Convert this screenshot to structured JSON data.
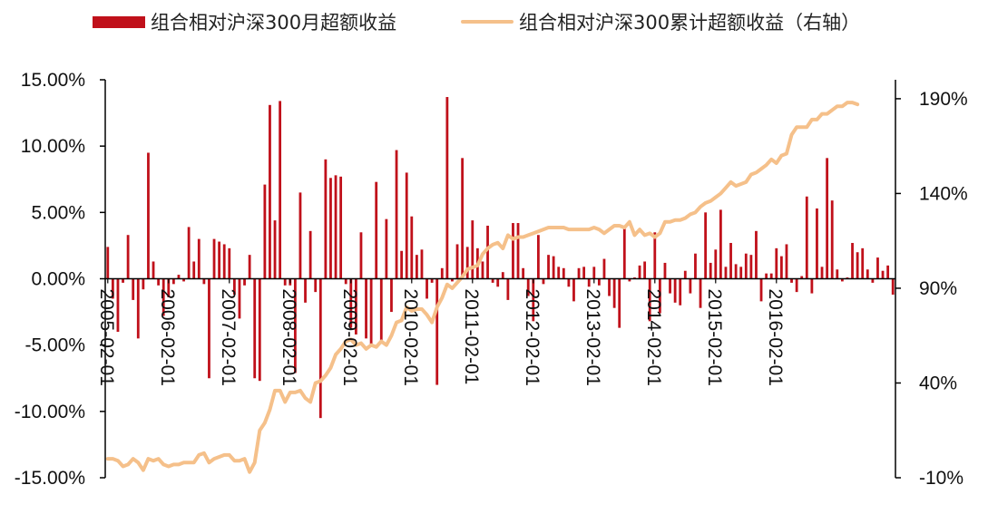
{
  "legend": {
    "bar_label": "组合相对沪深300月超额收益",
    "line_label": "组合相对沪深300累计超额收益（右轴）"
  },
  "colors": {
    "bar": "#c0101a",
    "line": "#f5c08a",
    "axis": "#000000"
  },
  "chart_data": {
    "type": "bar",
    "title": "",
    "xlabel": "",
    "ylabel": "",
    "x_tick_labels": [
      "2005-02-01",
      "2006-02-01",
      "2007-02-01",
      "2008-02-01",
      "2009-02-01",
      "2010-02-01",
      "2011-02-01",
      "2012-02-01",
      "2013-02-01",
      "2014-02-01",
      "2015-02-01",
      "2016-02-01"
    ],
    "y_left_ticks": [
      "15.00%",
      "10.00%",
      "5.00%",
      "0.00%",
      "-5.00%",
      "-10.00%",
      "-15.00%"
    ],
    "y_right_ticks": [
      "190%",
      "140%",
      "90%",
      "40%",
      "-10%"
    ],
    "ylim_left": [
      -15,
      15
    ],
    "ylim_right": [
      -10,
      200
    ],
    "start_month": "2005-02",
    "series": [
      {
        "name": "组合相对沪深300月超额收益",
        "type": "bar",
        "axis": "left",
        "values": [
          2.4,
          -1.5,
          -4.0,
          -0.3,
          3.3,
          -1.6,
          -4.5,
          -0.8,
          9.5,
          1.3,
          -0.5,
          -2.8,
          -1.4,
          -0.4,
          0.3,
          -0.2,
          3.9,
          1.3,
          3.0,
          -0.4,
          -7.5,
          3.0,
          2.8,
          2.6,
          2.3,
          -1.2,
          -3.0,
          -0.5,
          1.8,
          -7.5,
          -7.7,
          7.1,
          13.1,
          4.4,
          13.4,
          -0.5,
          -0.5,
          -7.1,
          6.5,
          -1.8,
          3.6,
          -1.0,
          -10.5,
          9.0,
          7.6,
          7.8,
          7.7,
          -0.4,
          -3.7,
          -4.2,
          3.5,
          -4.5,
          -5.1,
          7.3,
          -4.9,
          4.5,
          -2.5,
          9.7,
          2.1,
          8.0,
          4.7,
          1.8,
          2.2,
          -1.5,
          -0.3,
          -8.0,
          0.8,
          13.7,
          -0.2,
          2.6,
          9.1,
          2.4,
          4.4,
          2.3,
          1.3,
          4.0,
          -0.3,
          -0.6,
          0.5,
          -1.6,
          4.2,
          4.2,
          0.8,
          -1.3,
          -3.2,
          3.3,
          -0.4,
          1.8,
          1.7,
          0.9,
          0.8,
          -0.6,
          -1.7,
          0.8,
          0.9,
          -0.6,
          0.9,
          -0.5,
          1.5,
          -1.3,
          -2.2,
          -3.7,
          3.9,
          -0.2,
          0.1,
          1.0,
          1.3,
          -3.2,
          3.5,
          -2.6,
          1.2,
          -1.1,
          -1.8,
          -2.0,
          0.6,
          -1.1,
          1.9,
          -2.2,
          5.0,
          1.2,
          2.2,
          5.2,
          0.9,
          2.7,
          1.1,
          0.9,
          1.9,
          1.8,
          3.6,
          -1.7,
          0.4,
          0.4,
          2.3,
          1.7,
          2.6,
          -0.3,
          -1.0,
          0.2,
          6.2,
          -1.1,
          5.3,
          0.9,
          9.1,
          5.9,
          0.7,
          -0.2,
          0.1,
          2.7,
          2.0,
          2.3,
          0.7,
          -0.3,
          1.6,
          0.6,
          1.0,
          -1.2
        ]
      },
      {
        "name": "组合相对沪深300累计超额收益（右轴）",
        "type": "line",
        "axis": "right",
        "values": [
          0,
          0,
          -1,
          -4,
          -3,
          0,
          -2,
          -6,
          0,
          -1,
          0,
          -3,
          -4,
          -3,
          -3,
          -2,
          -2,
          -2,
          2,
          3,
          -2,
          0,
          1,
          2,
          2,
          -1,
          -1,
          0,
          -7,
          -2,
          15,
          19,
          26,
          36,
          36,
          30,
          35,
          35,
          36,
          32,
          30,
          40,
          41,
          44,
          48,
          55,
          58,
          62,
          63,
          60,
          61,
          58,
          60,
          59,
          62,
          60,
          65,
          72,
          73,
          80,
          78,
          79,
          79,
          76,
          72,
          80,
          85,
          92,
          90,
          93,
          96,
          100,
          101,
          102,
          108,
          111,
          113,
          114,
          111,
          118,
          116,
          117,
          117,
          118,
          119,
          120,
          121,
          122,
          122,
          122,
          122,
          121,
          121,
          121,
          121,
          121,
          122,
          121,
          119,
          121,
          123,
          123,
          122,
          125,
          118,
          121,
          118,
          119,
          117,
          119,
          125,
          125,
          126,
          126,
          127,
          129,
          130,
          133,
          135,
          136,
          138,
          140,
          143,
          146,
          144,
          145,
          146,
          150,
          151,
          153,
          155,
          158,
          156,
          160,
          161,
          171,
          175,
          175,
          175,
          179,
          179,
          182,
          182,
          184,
          186,
          186,
          188,
          188,
          187
        ]
      }
    ]
  }
}
